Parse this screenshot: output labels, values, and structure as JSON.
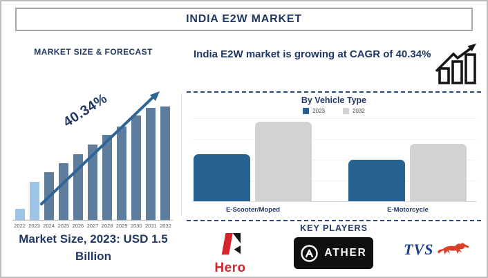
{
  "header": {
    "title": "INDIA E2W MARKET"
  },
  "left_panel": {
    "section_title": "MARKET SIZE & FORECAST",
    "growth_annotation": "40.34%",
    "market_size_note": "Market Size, 2023: USD 1.5 Billion"
  },
  "right_panel": {
    "headline": "India E2W market is growing at CAGR of 40.34%",
    "growth_icon": "bar-chart-rising-arrow",
    "key_players_title": "KEY PLAYERS",
    "players": [
      {
        "name": "Hero",
        "wordmark": "Hero",
        "brand_color": "#D4262C"
      },
      {
        "name": "Ather",
        "wordmark": "ATHER",
        "brand_color": "#101010"
      },
      {
        "name": "TVS",
        "wordmark": "TVS",
        "brand_color": "#1D3D8F"
      }
    ]
  },
  "chart_data": [
    {
      "id": "market-size-forecast",
      "type": "bar",
      "title": "MARKET SIZE & FORECAST",
      "categories": [
        "2022",
        "2023",
        "2024",
        "2025",
        "2026",
        "2027",
        "2028",
        "2029",
        "2030",
        "2031",
        "2032"
      ],
      "values": [
        9.5,
        33.5,
        42,
        50,
        58,
        66.5,
        75,
        82.5,
        92,
        99,
        100
      ],
      "ylim": [
        0,
        100
      ],
      "value_axis_visible": false,
      "grid": false,
      "bar_color": "#5E7D9C",
      "highlight_color": "#9DC3E6",
      "highlight_indices": [
        0,
        1
      ],
      "annotation": {
        "text": "40.34%",
        "type": "trend-arrow",
        "color": "#2F6496"
      }
    },
    {
      "id": "by-vehicle-type",
      "type": "bar",
      "title": "By Vehicle Type",
      "categories": [
        "E-Scooter/Moped",
        "E-Motorcycle"
      ],
      "series": [
        {
          "name": "2023",
          "color": "#26618F",
          "values": [
            59,
            52
          ]
        },
        {
          "name": "2032",
          "color": "#D2D2D2",
          "values": [
            100,
            72
          ]
        }
      ],
      "ylim": [
        0,
        100
      ],
      "value_axis_visible": false,
      "grid": true,
      "legend_position": "top"
    }
  ],
  "colors": {
    "navy_text": "#1F3864",
    "divider_dash": "#27467A",
    "axis_line": "#B9B9B9",
    "year_label": "#595959",
    "hero_red": "#D4262C",
    "tvs_blue": "#1D3D8F",
    "tvs_horse_red": "#D9412B",
    "ather_black": "#101010"
  }
}
